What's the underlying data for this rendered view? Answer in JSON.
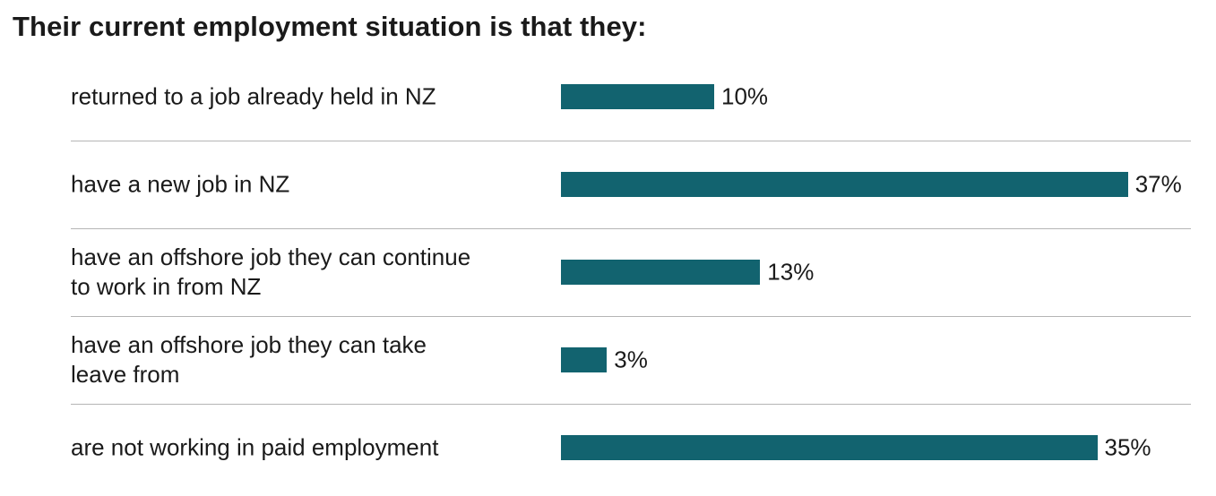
{
  "chart_data": {
    "type": "bar",
    "orientation": "horizontal",
    "title": "Their current employment situation is that they:",
    "categories": [
      "returned to a job already held in NZ",
      "have a new job in NZ",
      "have an offshore job they can continue to work in from NZ",
      "have an offshore job they can take leave from",
      "are not working in paid employment"
    ],
    "values": [
      10,
      37,
      13,
      3,
      35
    ],
    "value_labels": [
      "10%",
      "37%",
      "13%",
      "3%",
      "35%"
    ],
    "unit": "%",
    "xlim": [
      0,
      37
    ],
    "grid": false,
    "bar_color": "#12636f"
  }
}
